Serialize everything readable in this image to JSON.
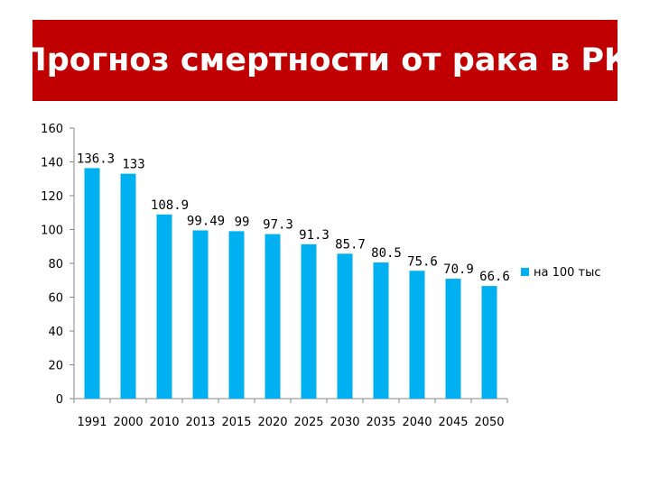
{
  "header": {
    "title": "Прогноз смертности от рака в РК"
  },
  "chart_data": {
    "type": "bar",
    "title": "Прогноз смертности от рака в РК",
    "categories": [
      "1991",
      "2000",
      "2010",
      "2013",
      "2015",
      "2020",
      "2025",
      "2030",
      "2035",
      "2040",
      "2045",
      "2050"
    ],
    "series": [
      {
        "name": "на 100 тыс",
        "values": [
          136.3,
          133,
          108.9,
          99.49,
          99,
          97.3,
          91.3,
          85.7,
          80.5,
          75.6,
          70.9,
          66.6
        ],
        "data_labels": [
          "136.3",
          "133",
          "108.9",
          "99.49",
          "99",
          "97.3",
          "91.3",
          "85.7",
          "80.5",
          "75.6",
          "70.9",
          "66.6"
        ]
      }
    ],
    "ylim": [
      0,
      160
    ],
    "yticks": [
      0,
      20,
      40,
      60,
      80,
      100,
      120,
      140,
      160
    ],
    "xlabel": "",
    "ylabel": "",
    "grid": false,
    "legend": "right",
    "colors": {
      "bar": "#00b0f0",
      "axis": "#868686"
    }
  }
}
